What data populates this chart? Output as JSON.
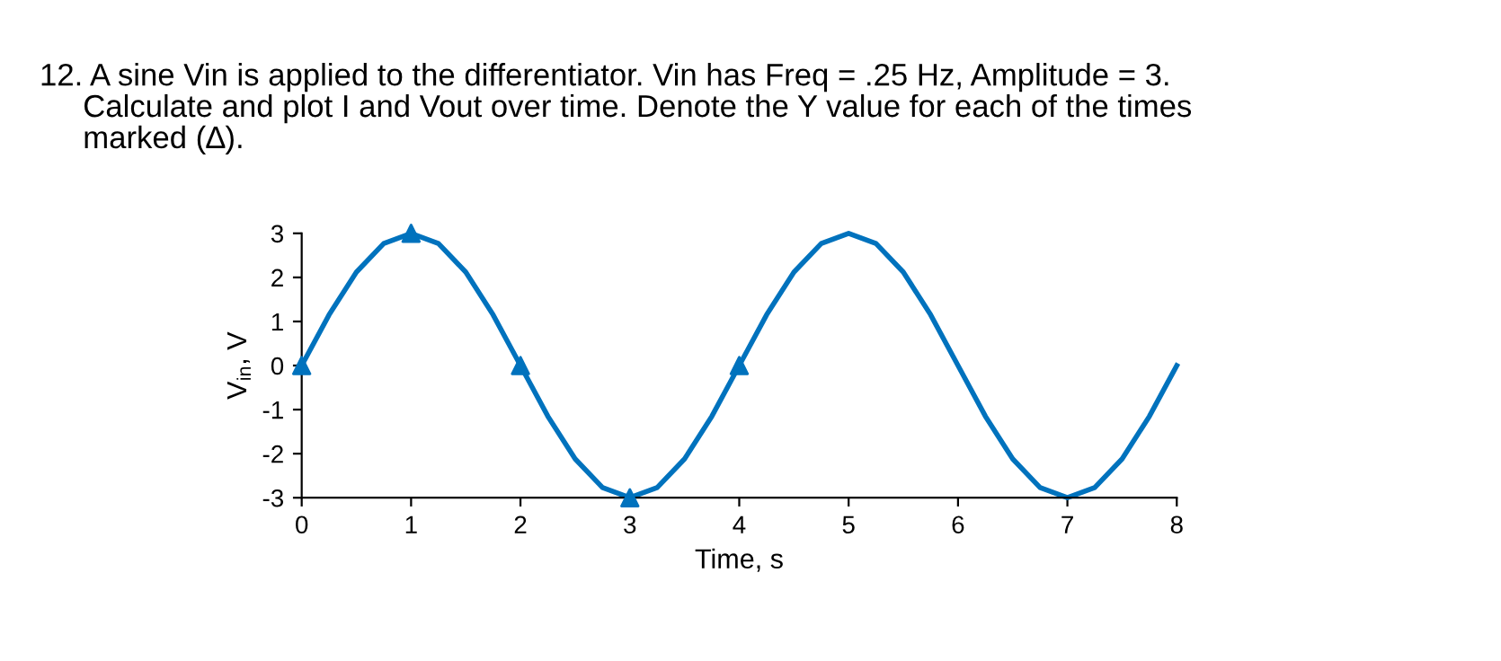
{
  "chart_data": {
    "type": "line",
    "title": "12. A sine Vin is applied to the differentiator. Vin has Freq = .25 Hz, Amplitude = 3.\n     Calculate and plot I and Vout over time. Denote the Y value for each of the times\n     marked (∆).",
    "xlabel": "Time, s",
    "ylabel": "V$_{in}$, V",
    "xlim": [
      0,
      8
    ],
    "ylim": [
      -3,
      3
    ],
    "xticks": [
      0,
      1,
      2,
      3,
      4,
      5,
      6,
      7,
      8
    ],
    "yticks": [
      -3,
      -2,
      -1,
      0,
      1,
      2,
      3
    ],
    "grid": false,
    "series": [
      {
        "color": "#0072bd",
        "marker": "none",
        "line_style": "solid",
        "x": [
          0,
          0.25,
          0.5,
          0.75,
          1,
          1.25,
          1.5,
          1.75,
          2,
          2.25,
          2.5,
          2.75,
          3,
          3.25,
          3.5,
          3.75,
          4,
          4.25,
          4.5,
          4.75,
          5,
          5.25,
          5.5,
          5.75,
          6,
          6.25,
          6.5,
          6.75,
          7,
          7.25,
          7.5,
          7.75,
          8
        ],
        "values": [
          0,
          1.15,
          2.12,
          2.77,
          3,
          2.77,
          2.12,
          1.15,
          0,
          -1.15,
          -2.12,
          -2.77,
          -3,
          -2.77,
          -2.12,
          -1.15,
          0,
          1.15,
          2.12,
          2.77,
          3,
          2.77,
          2.12,
          1.15,
          0,
          -1.15,
          -2.12,
          -2.77,
          -3,
          -2.77,
          -2.12,
          -1.15,
          0
        ]
      },
      {
        "type": "scatter",
        "color": "#0072bd",
        "marker": "triangle",
        "x": [
          0,
          1,
          2,
          3,
          4
        ],
        "values": [
          0,
          3,
          0,
          -3,
          0
        ]
      }
    ]
  }
}
